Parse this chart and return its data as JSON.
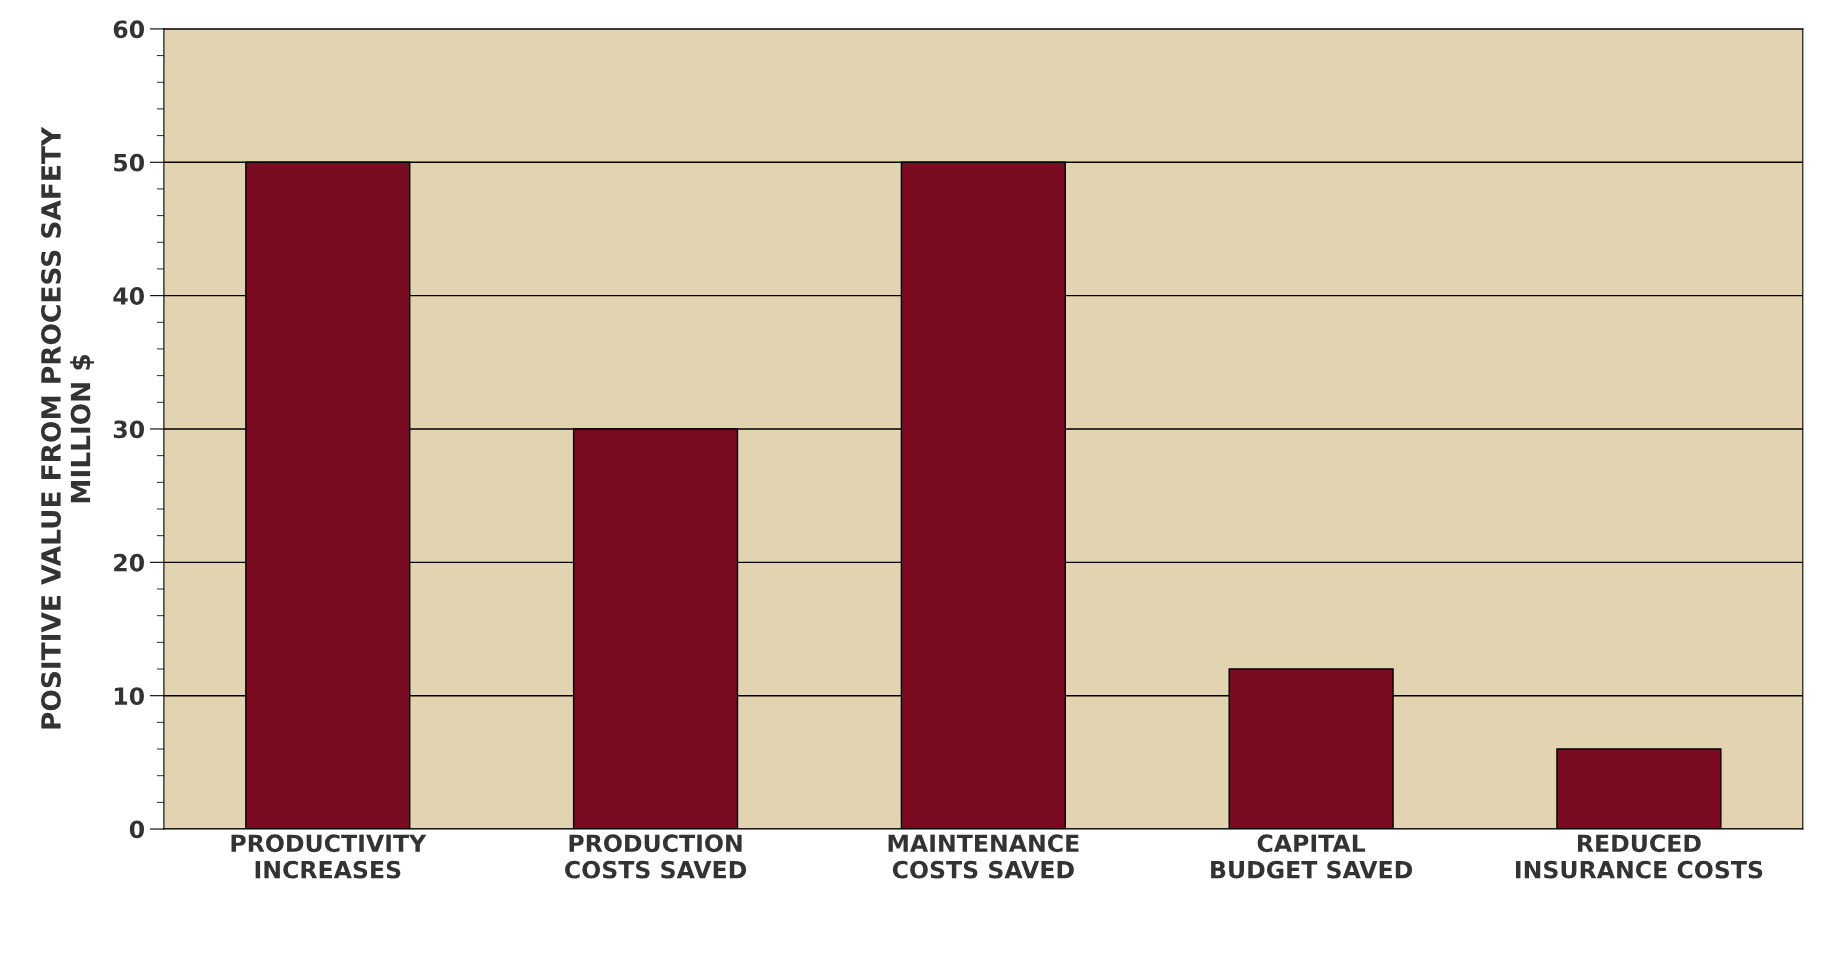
{
  "chart_data": {
    "type": "bar",
    "categories": [
      "PRODUCTIVITY\nINCREASES",
      "PRODUCTION\nCOSTS SAVED",
      "MAINTENANCE\nCOSTS SAVED",
      "CAPITAL\nBUDGET SAVED",
      "REDUCED\nINSURANCE COSTS"
    ],
    "values": [
      50,
      30,
      50,
      12,
      6
    ],
    "color": "#7a0a20",
    "ylabel": "POSITIVE VALUE FROM PROCESS SAFETY\nMILLION $",
    "ylim": [
      0,
      60
    ],
    "yticks": [
      0,
      10,
      20,
      30,
      40,
      50,
      60
    ],
    "grid": "y"
  }
}
